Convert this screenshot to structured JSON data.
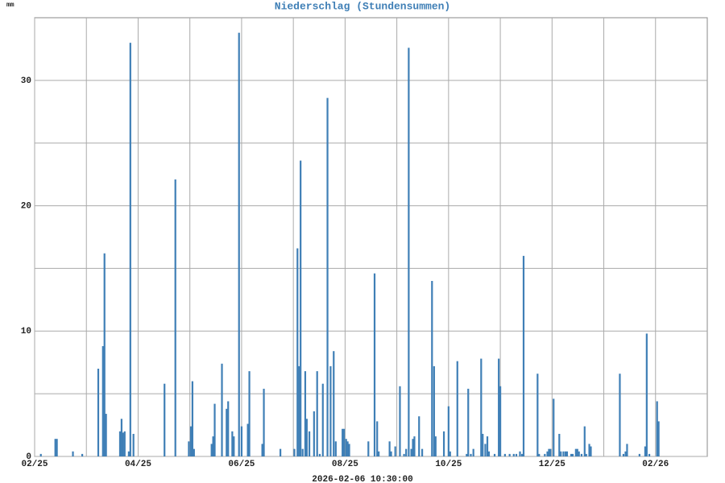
{
  "chart_data": {
    "type": "bar",
    "title": "Niederschlag (Stundensummen)",
    "y_label": "mm",
    "footer": "2026-02-06 10:30:00",
    "color": "#3f7fb6",
    "grid": true,
    "xlim": [
      0,
      13
    ],
    "xticks": [
      {
        "value": 0,
        "label": "02/25"
      },
      {
        "value": 2,
        "label": "04/25"
      },
      {
        "value": 4,
        "label": "06/25"
      },
      {
        "value": 6,
        "label": "08/25"
      },
      {
        "value": 8,
        "label": "10/25"
      },
      {
        "value": 10,
        "label": "12/25"
      },
      {
        "value": 12,
        "label": "02/26"
      }
    ],
    "xminor": [
      1,
      3,
      5,
      7,
      9,
      11
    ],
    "ylim": [
      0,
      35
    ],
    "yticks": [
      0,
      10,
      20,
      30
    ],
    "yminor": [
      5,
      15,
      25
    ],
    "x": [
      0.12,
      0.4,
      0.43,
      0.74,
      0.92,
      1.23,
      1.32,
      1.35,
      1.38,
      1.65,
      1.68,
      1.71,
      1.74,
      1.82,
      1.85,
      1.91,
      2.51,
      2.72,
      2.98,
      3.02,
      3.05,
      3.08,
      3.42,
      3.45,
      3.48,
      3.62,
      3.71,
      3.74,
      3.82,
      3.85,
      3.95,
      4.0,
      4.12,
      4.15,
      4.4,
      4.43,
      4.75,
      5.02,
      5.08,
      5.11,
      5.14,
      5.18,
      5.23,
      5.26,
      5.31,
      5.4,
      5.46,
      5.51,
      5.57,
      5.66,
      5.72,
      5.78,
      5.82,
      5.95,
      5.98,
      6.02,
      6.05,
      6.08,
      6.45,
      6.57,
      6.62,
      6.65,
      6.86,
      6.89,
      6.97,
      7.06,
      7.14,
      7.18,
      7.23,
      7.28,
      7.31,
      7.34,
      7.43,
      7.49,
      7.68,
      7.72,
      7.75,
      7.91,
      8.0,
      8.03,
      8.17,
      8.35,
      8.38,
      8.43,
      8.48,
      8.63,
      8.66,
      8.71,
      8.75,
      8.78,
      8.89,
      8.97,
      9.0,
      9.09,
      9.18,
      9.26,
      9.31,
      9.38,
      9.42,
      9.45,
      9.72,
      9.75,
      9.86,
      9.91,
      9.94,
      9.97,
      10.03,
      10.14,
      10.17,
      10.22,
      10.26,
      10.29,
      10.37,
      10.4,
      10.46,
      10.49,
      10.52,
      10.57,
      10.63,
      10.66,
      10.72,
      10.75,
      11.31,
      11.38,
      11.42,
      11.45,
      11.69,
      11.8,
      11.83,
      11.88,
      12.03,
      12.06
    ],
    "values": [
      0.2,
      1.4,
      1.4,
      0.4,
      0.2,
      7.0,
      8.8,
      16.2,
      3.4,
      2.0,
      3.0,
      1.9,
      2.0,
      0.4,
      33.0,
      1.8,
      5.8,
      22.1,
      1.2,
      2.4,
      6.0,
      0.6,
      1.0,
      1.6,
      4.2,
      7.4,
      3.8,
      4.4,
      2.0,
      1.6,
      33.8,
      2.4,
      2.6,
      6.8,
      1.0,
      5.4,
      0.6,
      0.6,
      16.6,
      7.2,
      23.6,
      0.6,
      6.8,
      3.0,
      2.0,
      3.6,
      6.8,
      0.2,
      5.8,
      28.6,
      7.2,
      8.4,
      1.2,
      2.2,
      2.2,
      1.4,
      1.2,
      1.0,
      1.2,
      14.6,
      2.8,
      0.4,
      1.2,
      0.4,
      0.8,
      5.6,
      0.2,
      0.6,
      32.6,
      0.6,
      1.4,
      1.6,
      3.2,
      0.6,
      14.0,
      7.2,
      1.6,
      2.0,
      4.0,
      0.4,
      7.6,
      0.2,
      5.4,
      0.2,
      0.6,
      7.8,
      1.8,
      1.0,
      1.6,
      0.4,
      0.2,
      7.8,
      5.6,
      0.2,
      0.2,
      0.2,
      0.2,
      0.4,
      0.2,
      16.0,
      6.6,
      0.2,
      0.2,
      0.4,
      0.6,
      0.6,
      4.6,
      1.8,
      0.4,
      0.4,
      0.4,
      0.4,
      0.2,
      0.2,
      0.6,
      0.6,
      0.4,
      0.2,
      2.4,
      0.2,
      1.0,
      0.8,
      6.6,
      0.2,
      0.4,
      1.0,
      0.2,
      0.8,
      9.8,
      0.2,
      4.4,
      2.8
    ]
  }
}
